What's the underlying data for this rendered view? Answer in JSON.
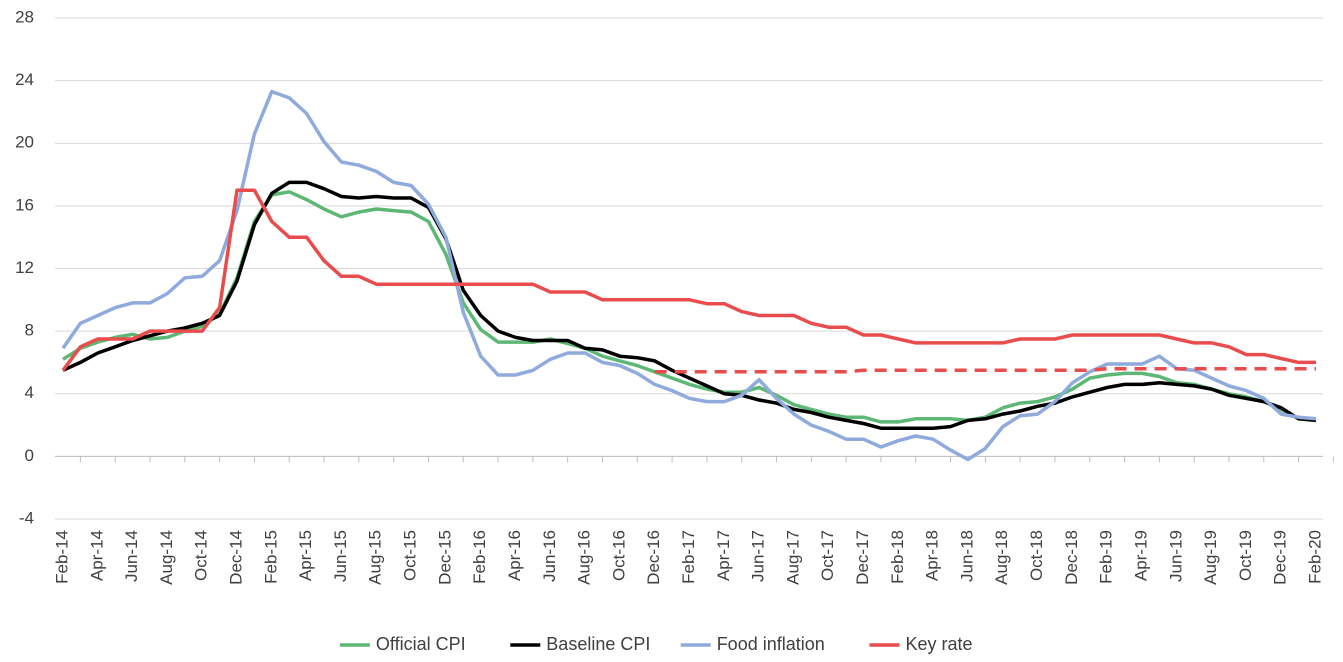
{
  "chart_data": {
    "type": "line",
    "categories": [
      "Feb-14",
      null,
      "Apr-14",
      null,
      "Jun-14",
      null,
      "Aug-14",
      null,
      "Oct-14",
      null,
      "Dec-14",
      null,
      "Feb-15",
      null,
      "Apr-15",
      null,
      "Jun-15",
      null,
      "Aug-15",
      null,
      "Oct-15",
      null,
      "Dec-15",
      null,
      "Feb-16",
      null,
      "Apr-16",
      null,
      "Jun-16",
      null,
      "Aug-16",
      null,
      "Oct-16",
      null,
      "Dec-16",
      null,
      "Feb-17",
      null,
      "Apr-17",
      null,
      "Jun-17",
      null,
      "Aug-17",
      null,
      "Oct-17",
      null,
      "Dec-17",
      null,
      "Feb-18",
      null,
      "Apr-18",
      null,
      "Jun-18",
      null,
      "Aug-18",
      null,
      "Oct-18",
      null,
      "Dec-18",
      null,
      "Feb-19",
      null,
      "Apr-19",
      null,
      "Jun-19",
      null,
      "Aug-19",
      null,
      "Oct-19",
      null,
      "Dec-19",
      null,
      "Feb-20"
    ],
    "series": [
      {
        "name": "Official CPI",
        "color": "#5cb874",
        "values": [
          6.2,
          6.9,
          7.3,
          7.6,
          7.8,
          7.5,
          7.6,
          8.0,
          8.3,
          9.1,
          11.4,
          15.0,
          16.7,
          16.9,
          16.4,
          15.8,
          15.3,
          15.6,
          15.8,
          15.7,
          15.6,
          15.0,
          12.9,
          9.8,
          8.1,
          7.3,
          7.3,
          7.3,
          7.5,
          7.2,
          6.9,
          6.4,
          6.1,
          5.8,
          5.4,
          5.0,
          4.6,
          4.3,
          4.1,
          4.1,
          4.4,
          3.9,
          3.3,
          3.0,
          2.7,
          2.5,
          2.5,
          2.2,
          2.2,
          2.4,
          2.4,
          2.4,
          2.3,
          2.5,
          3.1,
          3.4,
          3.5,
          3.8,
          4.3,
          5.0,
          5.2,
          5.3,
          5.3,
          5.1,
          4.7,
          4.6,
          4.3,
          4.0,
          3.8,
          3.5,
          3.0,
          2.4,
          2.3
        ]
      },
      {
        "name": "Baseline CPI",
        "color": "#000000",
        "values": [
          5.5,
          6.0,
          6.6,
          7.0,
          7.4,
          7.7,
          8.0,
          8.2,
          8.5,
          9.0,
          11.2,
          14.8,
          16.8,
          17.5,
          17.5,
          17.1,
          16.6,
          16.5,
          16.6,
          16.5,
          16.5,
          15.9,
          13.9,
          10.6,
          9.0,
          8.0,
          7.6,
          7.4,
          7.4,
          7.4,
          6.9,
          6.8,
          6.4,
          6.3,
          6.1,
          5.5,
          5.0,
          4.5,
          4.0,
          3.9,
          3.6,
          3.4,
          3.0,
          2.8,
          2.5,
          2.3,
          2.1,
          1.8,
          1.8,
          1.8,
          1.8,
          1.9,
          2.3,
          2.4,
          2.7,
          2.9,
          3.2,
          3.4,
          3.8,
          4.1,
          4.4,
          4.6,
          4.6,
          4.7,
          4.6,
          4.5,
          4.3,
          3.9,
          3.7,
          3.5,
          3.1,
          2.4,
          2.3
        ]
      },
      {
        "name": "Food inflation",
        "color": "#8faadc",
        "values": [
          6.9,
          8.5,
          9.0,
          9.5,
          9.8,
          9.8,
          10.4,
          11.4,
          11.5,
          12.5,
          15.7,
          20.6,
          23.3,
          22.9,
          21.9,
          20.1,
          18.8,
          18.6,
          18.2,
          17.5,
          17.3,
          16.1,
          14.0,
          9.2,
          6.4,
          5.2,
          5.2,
          5.5,
          6.2,
          6.6,
          6.6,
          6.0,
          5.8,
          5.3,
          4.6,
          4.2,
          3.7,
          3.5,
          3.5,
          3.9,
          4.9,
          3.7,
          2.7,
          2.0,
          1.6,
          1.1,
          1.1,
          0.6,
          1.0,
          1.3,
          1.1,
          0.4,
          -0.2,
          0.5,
          1.9,
          2.6,
          2.7,
          3.5,
          4.7,
          5.4,
          5.9,
          5.9,
          5.9,
          6.4,
          5.6,
          5.5,
          5.0,
          4.5,
          4.2,
          3.7,
          2.7,
          2.5,
          2.4
        ]
      },
      {
        "name": "Key rate",
        "color": "#e84c4c",
        "values": [
          5.5,
          7.0,
          7.5,
          7.5,
          7.5,
          8.0,
          8.0,
          8.0,
          8.0,
          9.5,
          17.0,
          17.0,
          15.0,
          14.0,
          14.0,
          12.5,
          11.5,
          11.5,
          11.0,
          11.0,
          11.0,
          11.0,
          11.0,
          11.0,
          11.0,
          11.0,
          11.0,
          11.0,
          10.5,
          10.5,
          10.5,
          10.0,
          10.0,
          10.0,
          10.0,
          10.0,
          10.0,
          9.75,
          9.75,
          9.25,
          9.0,
          9.0,
          9.0,
          8.5,
          8.25,
          8.25,
          7.75,
          7.75,
          7.5,
          7.25,
          7.25,
          7.25,
          7.25,
          7.25,
          7.25,
          7.5,
          7.5,
          7.5,
          7.75,
          7.75,
          7.75,
          7.75,
          7.75,
          7.75,
          7.5,
          7.25,
          7.25,
          7.0,
          6.5,
          6.5,
          6.25,
          6.0,
          6.0
        ]
      },
      {
        "color": "#e84c4c",
        "dash": true,
        "values": [
          null,
          null,
          null,
          null,
          null,
          null,
          null,
          null,
          null,
          null,
          null,
          null,
          null,
          null,
          null,
          null,
          null,
          null,
          null,
          null,
          null,
          null,
          null,
          null,
          null,
          null,
          null,
          null,
          null,
          null,
          null,
          null,
          null,
          null,
          5.4,
          5.4,
          5.4,
          5.4,
          5.4,
          5.4,
          5.4,
          5.4,
          5.4,
          5.4,
          5.4,
          5.4,
          5.5,
          5.5,
          5.5,
          5.5,
          5.5,
          5.5,
          5.5,
          5.5,
          5.5,
          5.5,
          5.5,
          5.5,
          5.5,
          5.5,
          5.6,
          5.6,
          5.6,
          5.6,
          5.6,
          5.6,
          5.6,
          5.6,
          5.6,
          5.6,
          5.6,
          5.6,
          5.6
        ]
      }
    ],
    "ylim": [
      -4,
      28
    ],
    "yticks": [
      -4,
      0,
      4,
      8,
      12,
      16,
      20,
      24,
      28
    ],
    "grid": true
  }
}
